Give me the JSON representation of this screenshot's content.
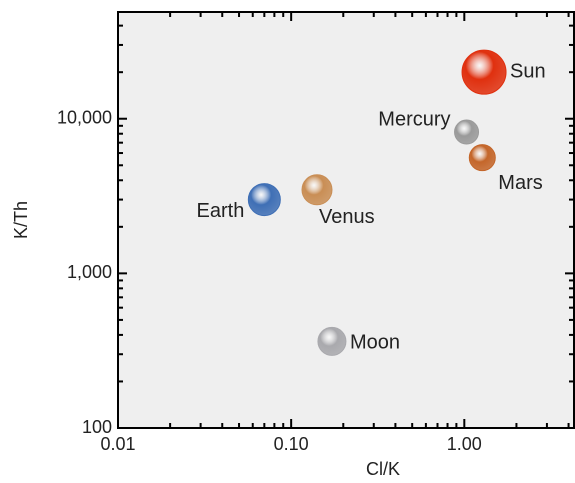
{
  "chart_data": {
    "type": "scatter",
    "x_label": "Cl/K",
    "y_label": "K/Th",
    "xscale": "log",
    "yscale": "log",
    "labels": [
      "Sun",
      "Mercury",
      "Mars",
      "Venus",
      "Earth",
      "Moon"
    ],
    "x": [
      1.3,
      1.03,
      1.27,
      0.141,
      0.07,
      0.172
    ],
    "values": [
      20000,
      8200,
      5600,
      3470,
      3000,
      363
    ],
    "colors": [
      "#e0300f",
      "#9a9a9a",
      "#c4662a",
      "#c98e55",
      "#3f6fb5",
      "#a9a9ad"
    ],
    "xlim": [
      0.01,
      4.3
    ],
    "ylim": [
      100,
      49000
    ],
    "xticks": [
      0.01,
      {
        "value": 0.1,
        "label": "0.10"
      },
      {
        "value": 1,
        "label": "1.00"
      }
    ],
    "yticks": [
      100,
      {
        "value": 1000,
        "label": "1,000"
      },
      {
        "value": 10000,
        "label": "10,000"
      }
    ],
    "xminorticks": [
      0.02,
      0.03,
      0.04,
      0.05,
      0.06,
      0.07,
      0.08,
      0.09,
      0.2,
      0.3,
      0.4,
      0.5,
      0.6,
      0.7,
      0.8,
      0.9,
      2,
      3,
      4
    ],
    "yminorticks": [
      200,
      300,
      400,
      500,
      600,
      700,
      800,
      900,
      2000,
      3000,
      4000,
      5000,
      6000,
      7000,
      8000,
      9000,
      20000,
      30000,
      40000
    ]
  }
}
